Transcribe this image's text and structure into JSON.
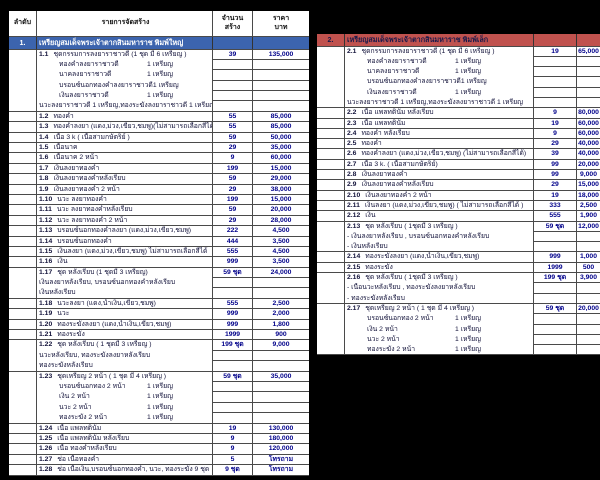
{
  "page": {
    "background": "#000000"
  },
  "columns": {
    "order": "ลำดับ",
    "item": "รายการจัดสร้าง",
    "qty_line1": "จำนวน",
    "qty_line2": "สร้าง",
    "price_line1": "ราคา",
    "price_line2": "บาท"
  },
  "colors": {
    "section_blue": "#3c64ae",
    "section_red": "#c0524e",
    "number_text": "#00008a",
    "grid": "#4a4a4a"
  },
  "tables": [
    {
      "name": "large-coin-table",
      "show_column_headers": true,
      "has_order_col": true,
      "section_no": "1.",
      "section_title": "เหรียญสมเด็จพระเจ้าตากสินมหาราช พิมพ์ใหญ่",
      "section_color": "#3c64ae",
      "section_text_color": "#ffffff",
      "rows": [
        {
          "no": "1.1",
          "desc": "ชุดกรรมการลงยาราชาวดี   (1 ชุด มี 6 เหรียญ )",
          "qty": "39",
          "price": "135,000",
          "subs": [
            {
              "text": "ทองคำลงยาราชาวดี",
              "unit": "1   เหรียญ",
              "indent": true
            },
            {
              "text": "นาคลงยาราชาวดี",
              "unit": "1   เหรียญ",
              "indent": true
            },
            {
              "text": "บรอนซ์นอกทองคำลงยาราชาวดี",
              "unit": "1   เหรียญ",
              "indent": true
            },
            {
              "text": "เงินลงยาราชาวดี",
              "unit": "1   เหรียญ",
              "indent": true
            },
            {
              "text": "นวะลงยาราชาวดี 1 เหรียญ,ทองระฆังลงยาราชาวดี 1 เหรียญ",
              "indent": false
            }
          ]
        },
        {
          "no": "1.2",
          "desc": "ทองคำ",
          "qty": "55",
          "price": "85,000"
        },
        {
          "no": "1.3",
          "desc": "ทองคำลงยา (แดง,ม่วง,เขียว,ชมพู)(ไม่สามารถเลือกสีได้)",
          "qty": "55",
          "price": "85,000"
        },
        {
          "no": "1.4",
          "desc": "เนื้อ 3 k ( เนื้อสามกษัตริย์ )",
          "qty": "59",
          "price": "50,000"
        },
        {
          "no": "1.5",
          "desc": "เนื้อนาค",
          "qty": "29",
          "price": "35,000"
        },
        {
          "no": "1.6",
          "desc": "เนื้อนาค 2 หน้า",
          "qty": "9",
          "price": "60,000"
        },
        {
          "no": "1.7",
          "desc": "เงินลงยาทองคำ",
          "qty": "199",
          "price": "15,000"
        },
        {
          "no": "1.8",
          "desc": "เงินลงยาทองคำหลังเรียบ",
          "qty": "59",
          "price": "29,000"
        },
        {
          "no": "1.9",
          "desc": "เงินลงยาทองคำ 2 หน้า",
          "qty": "29",
          "price": "38,000"
        },
        {
          "no": "1.10",
          "desc": "นวะ ลงยาทองคำ",
          "qty": "199",
          "price": "15,000"
        },
        {
          "no": "1.11",
          "desc": "นวะ ลงยาทองคำหลังเรียบ",
          "qty": "59",
          "price": "20,000"
        },
        {
          "no": "1.12",
          "desc": "นวะ ลงยาทองคำ 2 หน้า",
          "qty": "29",
          "price": "28,000"
        },
        {
          "no": "1.13",
          "desc": "บรอนซ์นอกทองคำลงยา  (แดง,ม่วง,เขียว,ชมพู)",
          "qty": "222",
          "price": "4,500"
        },
        {
          "no": "1.14",
          "desc": "บรอนซ์นอกทองคำ",
          "qty": "444",
          "price": "3,500"
        },
        {
          "no": "1.15",
          "desc": "เงินลงยา  (แดง,ม่วง,เขียว,ชมพู)   ไม่สามารถเลือกสีได้",
          "qty": "555",
          "price": "4,500"
        },
        {
          "no": "1.16",
          "desc": "เงิน",
          "qty": "999",
          "price": "3,500"
        },
        {
          "no": "1.17",
          "desc": "ชุด หลังเรียบ (1 ชุดมี 3 เหรียญ)",
          "qty": "59 ชุด",
          "price": "24,000",
          "subs": [
            {
              "text": "เงินลงยาหลังเรียบ, บรอนซ์นอกทองคำหลังเรียบ",
              "indent": false
            },
            {
              "text": "เงินหลังเรียบ",
              "indent": false
            }
          ]
        },
        {
          "no": "1.18",
          "desc": "นวะลงยา  (แดง,น้ำเงิน,เขียว,ชมพู)",
          "qty": "555",
          "price": "2,500"
        },
        {
          "no": "1.19",
          "desc": "นวะ",
          "qty": "999",
          "price": "2,000"
        },
        {
          "no": "1.20",
          "desc": "ทองระฆังลงยา (แดง,น้ำเงิน,เขียว,ชมพู)",
          "qty": "999",
          "price": "1,800"
        },
        {
          "no": "1.21",
          "desc": "ทองระฆัง",
          "qty": "1999",
          "price": "900"
        },
        {
          "no": "1.22",
          "desc": "ชุด หลังเรียบ ( 1 ชุดมี 3 เหรียญ )",
          "qty": "199 ชุด",
          "price": "9,000",
          "subs": [
            {
              "text": "นวะหลังเรียบ, ทองระฆังลงยาหลังเรียบ",
              "indent": false
            },
            {
              "text": "ทองระฆังหลังเรียบ",
              "indent": false
            }
          ]
        },
        {
          "no": "1.23",
          "desc": "ชุดเหรียญ 2 หน้า   ( 1 ชุด มี 4 เหรียญ )",
          "qty": "59 ชุด",
          "price": "35,000",
          "subs": [
            {
              "text": "บรอนซ์นอกทอง 2 หน้า",
              "unit": "1   เหรียญ",
              "indent": true
            },
            {
              "text": "เงิน 2 หน้า",
              "unit": "1   เหรียญ",
              "indent": true
            },
            {
              "text": "นวะ 2 หน้า",
              "unit": "1   เหรียญ",
              "indent": true
            },
            {
              "text": "ทองระฆัง 2 หน้า",
              "unit": "1   เหรียญ",
              "indent": true
            }
          ]
        },
        {
          "no": "1.24",
          "desc": "เนื้อ แพลทตินัม",
          "qty": "19",
          "price": "130,000"
        },
        {
          "no": "1.25",
          "desc": "เนื้อ แพลทตินัม หลังเรียบ",
          "qty": "9",
          "price": "180,000"
        },
        {
          "no": "1.26",
          "desc": "เนื้อ ทองคำหลังเรียบ",
          "qty": "9",
          "price": "120,000"
        },
        {
          "no": "1.27",
          "desc": "ช่อ เนื้อทองคำ",
          "qty": "5",
          "price": "โทรถาม"
        },
        {
          "no": "1.28",
          "desc": "ช่อ เนื้อเงิน,บรอนซ์นอกทองคำ, นวะ, ทองระฆัง 9 ชุด",
          "qty": "9 ชุด",
          "price": "โทรถาม"
        }
      ]
    },
    {
      "name": "small-coin-table",
      "show_column_headers": false,
      "has_order_col": true,
      "section_no": "2.",
      "section_title": "เหรียญสมเด็จพระเจ้าตากสินมหาราช พิมพ์เล็ก",
      "section_color": "#c0524e",
      "section_text_color": "#1a1a4a",
      "rows": [
        {
          "no": "2.1",
          "desc": "ชุดกรรมการลงยาราชาวดี   (1 ชุด มี 6 เหรียญ )",
          "qty": "19",
          "price": "65,000",
          "subs": [
            {
              "text": "ทองคำลงยาราชาวดี",
              "unit": "1   เหรียญ",
              "indent": true
            },
            {
              "text": "นาคลงยาราชาวดี",
              "unit": "1   เหรียญ",
              "indent": true
            },
            {
              "text": "บรอนซ์นอกทองคำลงยาราชาวดี",
              "unit": "1   เหรียญ",
              "indent": true
            },
            {
              "text": "เงินลงยาราชาวดี",
              "unit": "1   เหรียญ",
              "indent": true
            },
            {
              "text": "นวะลงยาราชาวดี 1 เหรียญ,ทองระฆังลงยาราชาวดี 1 เหรียญ",
              "indent": false
            }
          ]
        },
        {
          "no": "2.2",
          "desc": "เนื้อ แพลทตินัม  หลังเรียบ",
          "qty": "9",
          "price": "80,000"
        },
        {
          "no": "2.3",
          "desc": "เนื้อ แพลทตินัม",
          "qty": "19",
          "price": "60,000"
        },
        {
          "no": "2.4",
          "desc": "ทองคำ หลังเรียบ",
          "qty": "9",
          "price": "60,000"
        },
        {
          "no": "2.5",
          "desc": "ทองคำ",
          "qty": "29",
          "price": "40,000"
        },
        {
          "no": "2.6",
          "desc": "ทองคำลงยา (แดง,ม่วง,เขียว,ชมพู) (ไม่สามารถเลือกสีได้)",
          "qty": "39",
          "price": "40,000"
        },
        {
          "no": "2.7",
          "desc": "เนื้อ 3 k.  ( เนื้อสามกษัตริย์)",
          "qty": "99",
          "price": "20,000"
        },
        {
          "no": "2.8",
          "desc": "เงินลงยาทองคำ",
          "qty": "99",
          "price": "9,000"
        },
        {
          "no": "2.9",
          "desc": "เงินลงยาทองคำหลังเรียบ",
          "qty": "29",
          "price": "15,000"
        },
        {
          "no": "2.10",
          "desc": "เงินลงยาทองคำ 2 หน้า",
          "qty": "19",
          "price": "18,000"
        },
        {
          "no": "2.11",
          "desc": "เงินลงยา  (แดง,ม่วง,เขียว,ชมพู) ( ไม่สามารถเลือกสีได้ )",
          "qty": "333",
          "price": "2,500"
        },
        {
          "no": "2.12",
          "desc": "เงิน",
          "qty": "555",
          "price": "1,900"
        },
        {
          "no": "2.13",
          "desc": "ชุด หลังเรียบ              ( 1ชุดมี 3 เหรียญ )",
          "qty": "59 ชุด",
          "price": "12,000",
          "subs": [
            {
              "text": "- เงินลงยาหลังเรียบ , บรอนซ์นอกทองคำหลังเรียบ",
              "indent": false
            },
            {
              "text": "- เงินหลังเรียบ",
              "indent": false
            }
          ]
        },
        {
          "no": "2.14",
          "desc": "ทองระฆังลงยา (แดง,น้ำเงิน,เขียว,ชมพู)",
          "qty": "999",
          "price": "1,000"
        },
        {
          "no": "2.15",
          "desc": "ทองระฆัง",
          "qty": "1999",
          "price": "500"
        },
        {
          "no": "2.16",
          "desc": "ชุด หลังเรียบ              ( 1ชุดมี 3 เหรียญ )",
          "qty": "199 ชุด",
          "price": "3,900",
          "subs": [
            {
              "text": "- เนื้อนวะหลังเรียบ , ทองระฆังลงยาหลังเรียบ",
              "indent": false
            },
            {
              "text": "- ทองระฆังหลังเรียบ",
              "indent": false
            }
          ]
        },
        {
          "no": "2.17",
          "desc": "ชุดเหรียญ 2 หน้า   ( 1 ชุด มี 4 เหรียญ )",
          "qty": "59 ชุด",
          "price": "20,000",
          "subs": [
            {
              "text": "บรอนซ์นอกทอง 2 หน้า",
              "unit": "1   เหรียญ",
              "indent": true
            },
            {
              "text": "เงิน 2 หน้า",
              "unit": "1   เหรียญ",
              "indent": true
            },
            {
              "text": "นวะ 2 หน้า",
              "unit": "1   เหรียญ",
              "indent": true
            },
            {
              "text": "ทองระฆัง 2 หน้า",
              "unit": "1   เหรียญ",
              "indent": true
            }
          ]
        }
      ]
    }
  ]
}
